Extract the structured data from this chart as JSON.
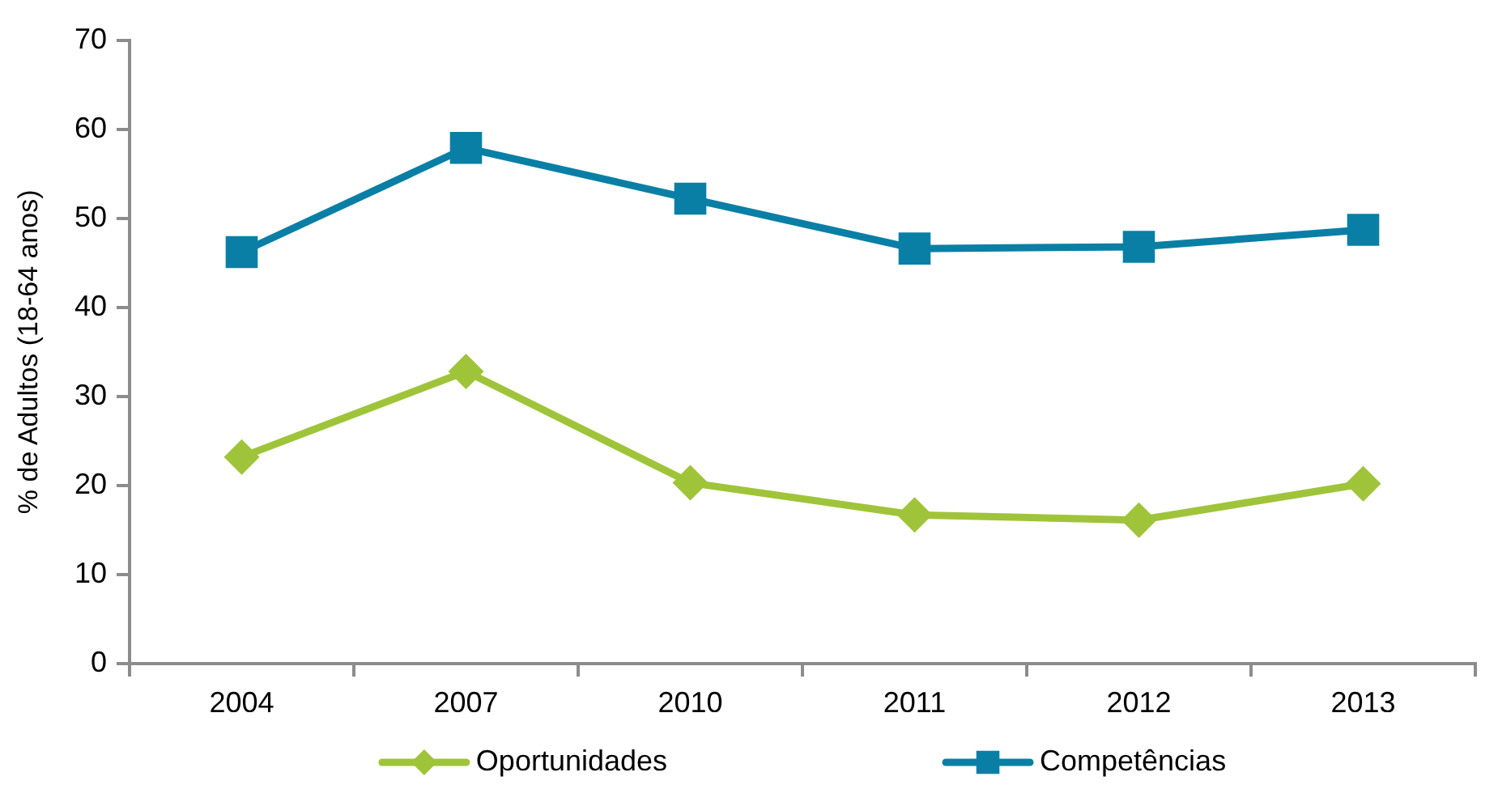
{
  "chart_data": {
    "type": "line",
    "ylabel": "% de Adultos (18-64 anos)",
    "categories": [
      "2004",
      "2007",
      "2010",
      "2011",
      "2012",
      "2013"
    ],
    "series": [
      {
        "name": "Oportunidades",
        "color": "#9fc43a",
        "marker": "diamond",
        "values": [
          23.2,
          32.8,
          20.3,
          16.7,
          16.1,
          20.2
        ]
      },
      {
        "name": "Competências",
        "color": "#0a7fa5",
        "marker": "square",
        "values": [
          46.2,
          57.9,
          52.2,
          46.6,
          46.8,
          48.7
        ]
      }
    ],
    "ylim": [
      0,
      70
    ],
    "yticks": [
      0,
      10,
      20,
      30,
      40,
      50,
      60,
      70
    ],
    "grid": false,
    "legend": "bottom",
    "line_style": "solid"
  }
}
